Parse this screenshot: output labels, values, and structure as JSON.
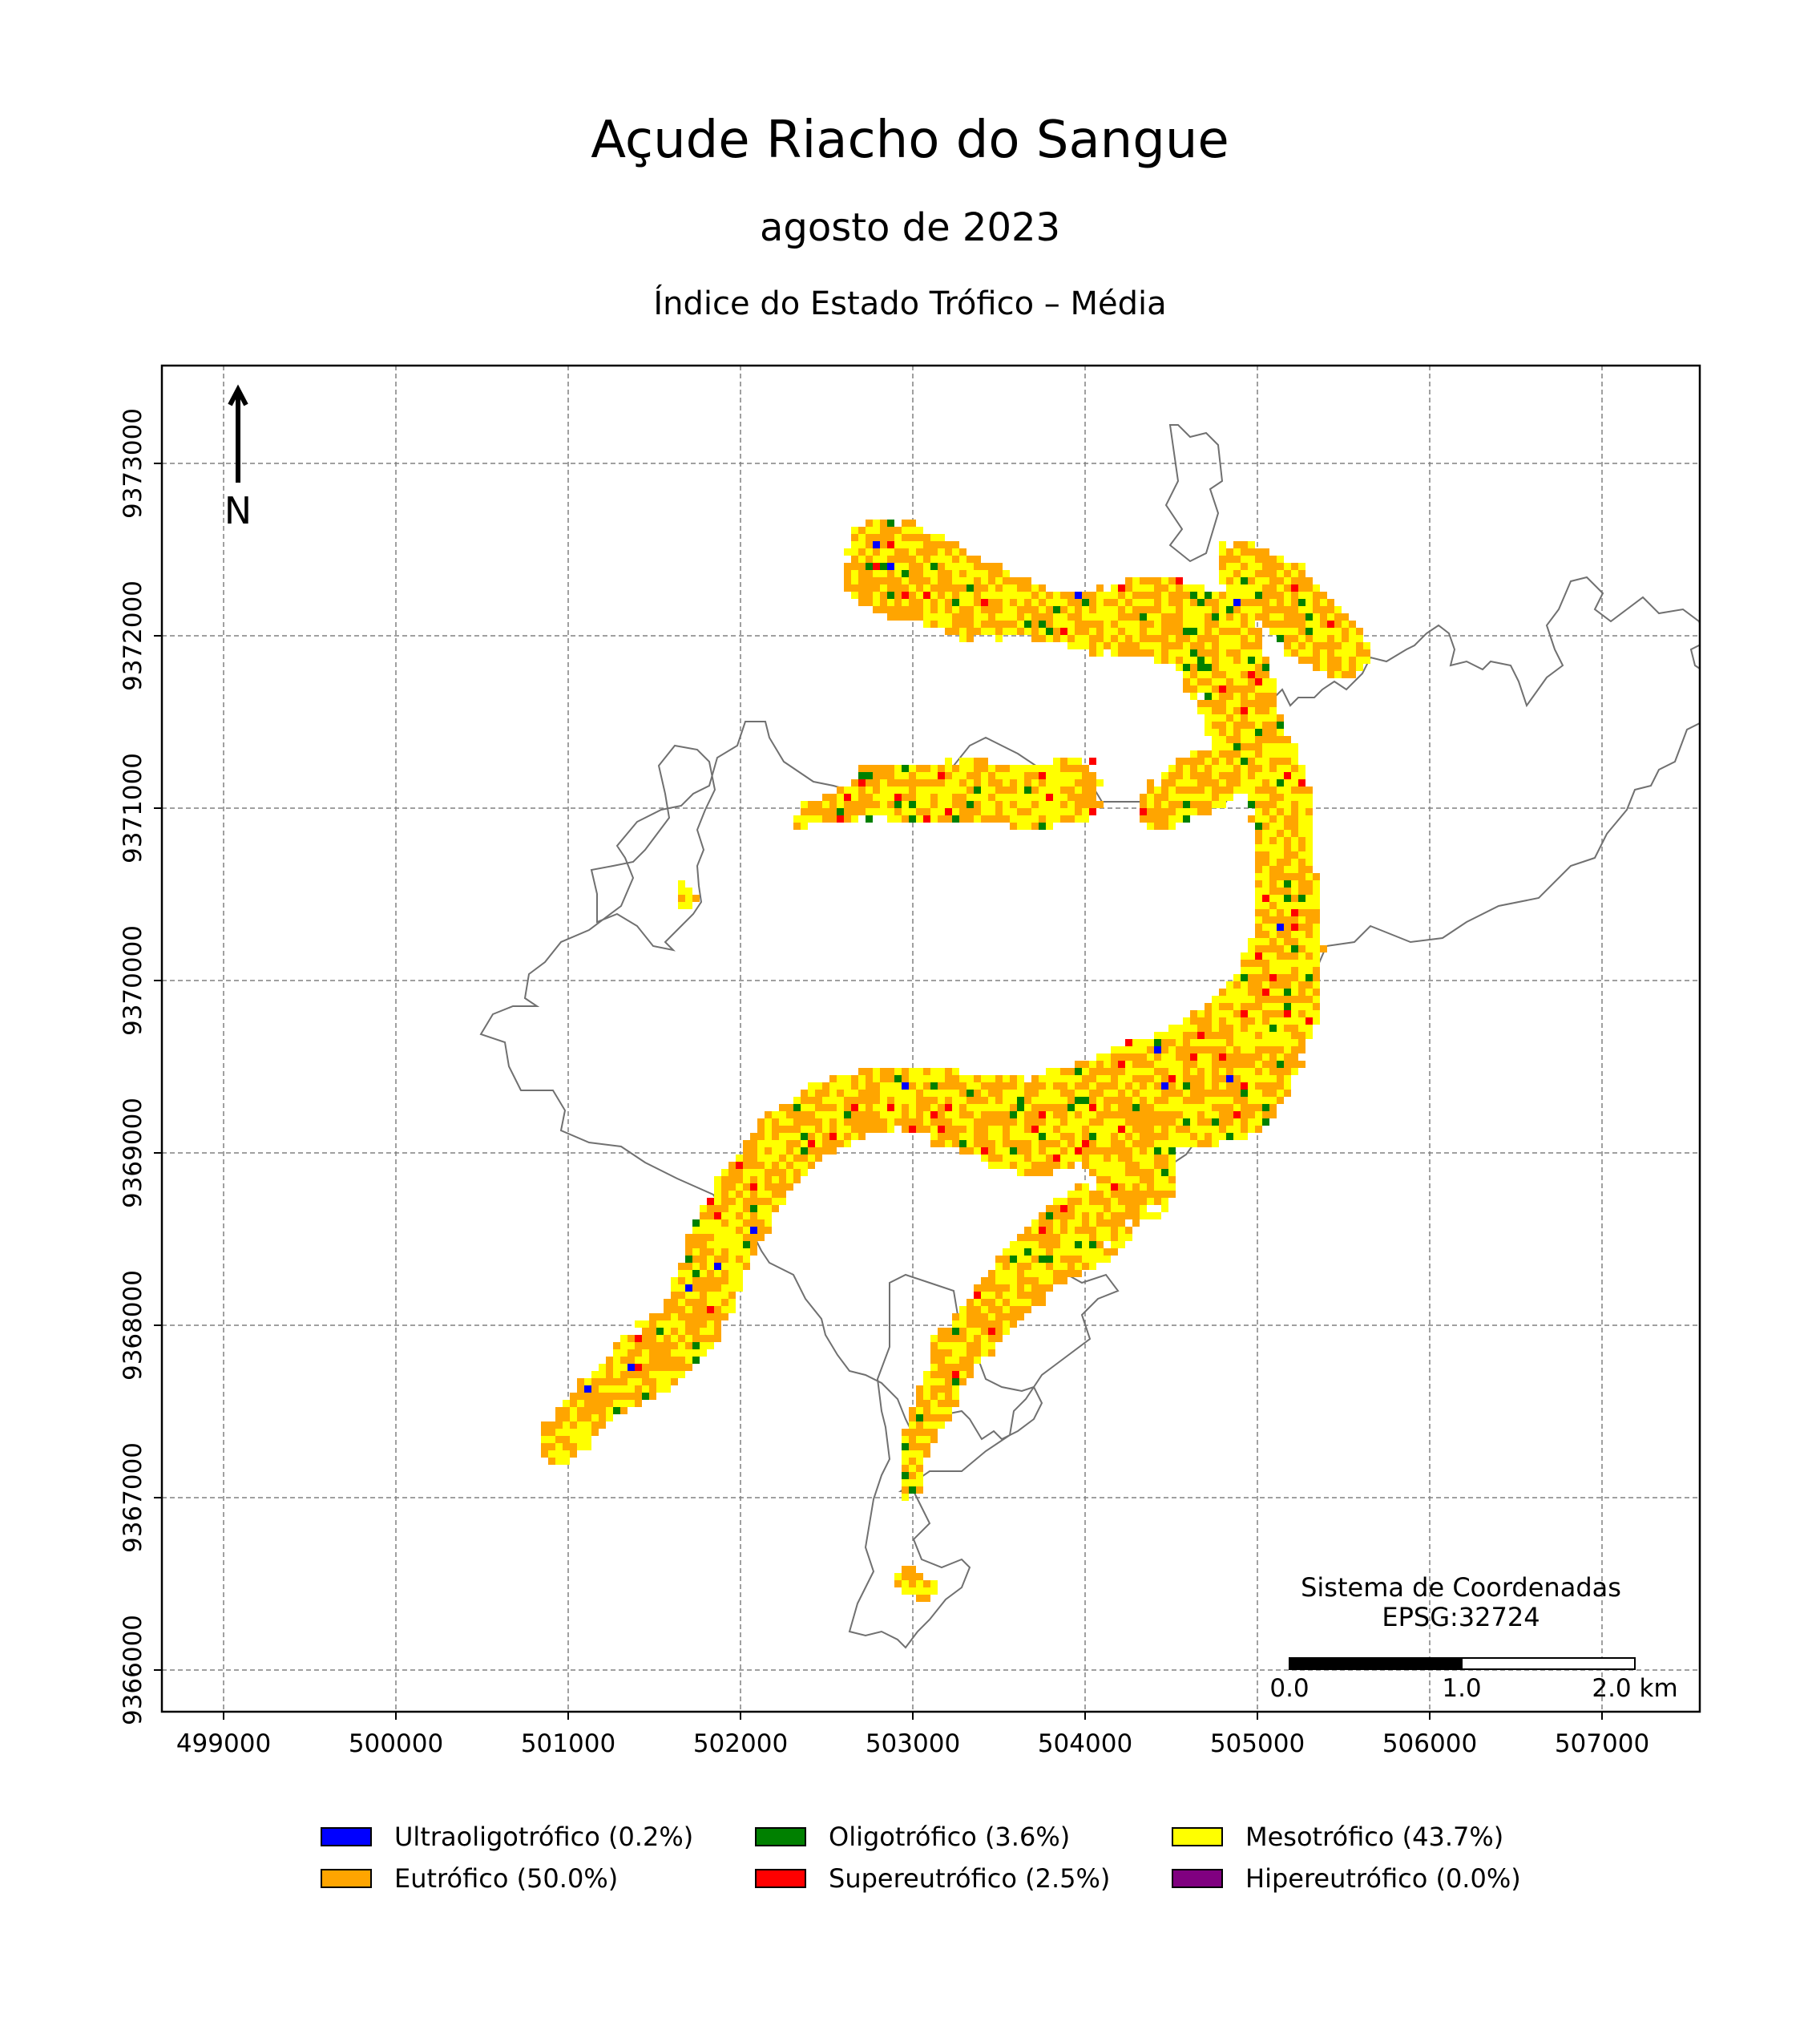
{
  "title": "Açude Riacho do Sangue",
  "subtitle": "agosto de 2023",
  "map_title": "Índice do Estado Trófico – Média",
  "north_label": "N",
  "crs_text": [
    "Sistema de Coordenadas",
    "EPSG:32724"
  ],
  "scale_bar": {
    "labels": [
      "0.0",
      "1.0",
      "2.0 km"
    ]
  },
  "x_ticks": [
    "499000",
    "500000",
    "501000",
    "502000",
    "503000",
    "504000",
    "505000",
    "506000",
    "507000"
  ],
  "y_ticks": [
    "9366000",
    "9367000",
    "9368000",
    "9369000",
    "9370000",
    "9371000",
    "9372000",
    "9373000"
  ],
  "grid": true,
  "legend": [
    {
      "label": "Ultraoligotrófico (0.2%)",
      "color": "#0000ff"
    },
    {
      "label": "Oligotrófico (3.6%)",
      "color": "#008000"
    },
    {
      "label": "Mesotrófico (43.7%)",
      "color": "#ffff00"
    },
    {
      "label": "Eutrófico (50.0%)",
      "color": "#ffa500"
    },
    {
      "label": "Supereutrófico (2.5%)",
      "color": "#ff0000"
    },
    {
      "label": "Hipereutrófico (0.0%)",
      "color": "#800080"
    }
  ],
  "colors": {
    "ultraoligotrofico": "#0000ff",
    "oligotrofico": "#008000",
    "mesotrofico": "#ffff00",
    "eutrofico": "#ffa500",
    "supereutrofico": "#ff0000",
    "hipereutrofico": "#800080",
    "outline": "#707070",
    "grid": "#808080"
  }
}
